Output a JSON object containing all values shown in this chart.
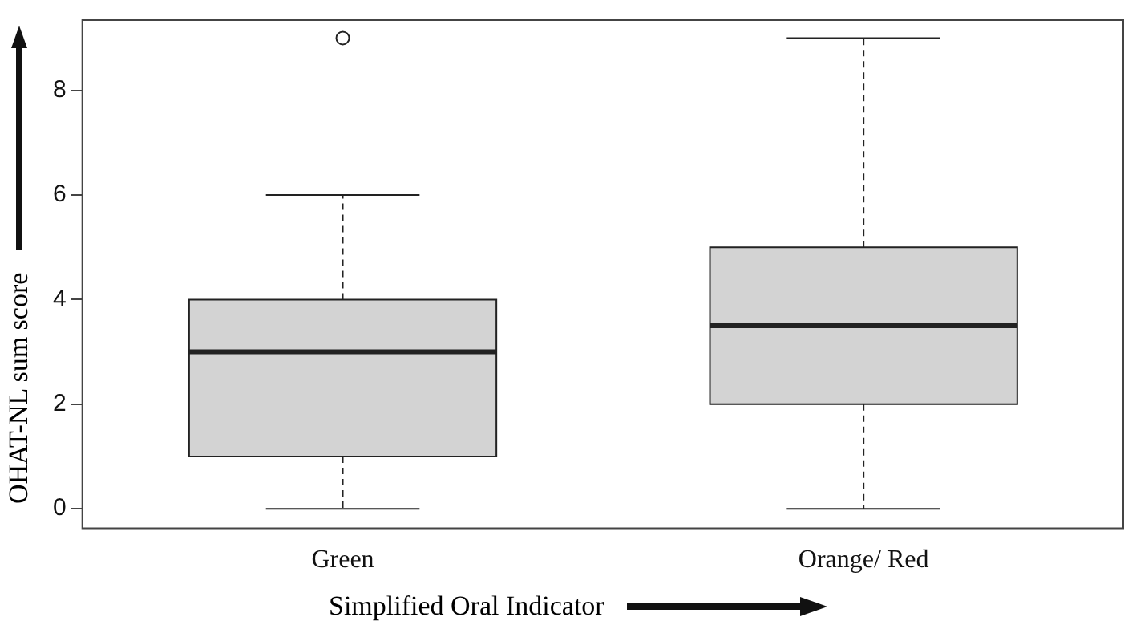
{
  "chart_data": {
    "type": "box",
    "xlabel": "Simplified Oral Indicator",
    "ylabel": "OHAT-NL sum score",
    "categories": [
      "Green",
      "Orange/ Red"
    ],
    "color": "#d3d3d3",
    "boxes": [
      {
        "low": 0,
        "q1": 1,
        "median": 3,
        "q3": 4,
        "high": 6,
        "outliers": [
          9
        ]
      },
      {
        "low": 0,
        "q1": 2,
        "median": 3.5,
        "q3": 5,
        "high": 9
      }
    ],
    "ylim": [
      -0.36,
      9.36
    ],
    "yticks": [
      0,
      2,
      4,
      6,
      8
    ]
  }
}
